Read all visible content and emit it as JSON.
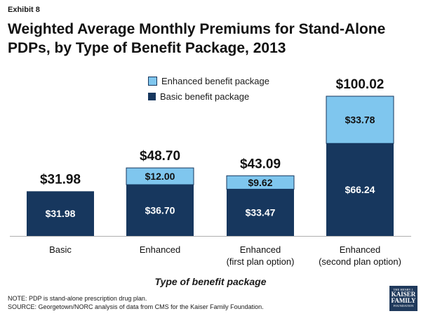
{
  "exhibit": "Exhibit 8",
  "title_lines": [
    "Weighted Average Monthly Premiums for Stand-Alone",
    "PDPs, by Type of Benefit Package, 2013"
  ],
  "chart_data": {
    "type": "bar",
    "stacked": true,
    "categories": [
      [
        "Basic"
      ],
      [
        "Enhanced"
      ],
      [
        "Enhanced",
        "(first plan option)"
      ],
      [
        "Enhanced",
        "(second plan option)"
      ]
    ],
    "series": [
      {
        "name": "Basic benefit package",
        "color": "#17375e",
        "values": [
          31.98,
          36.7,
          33.47,
          66.24
        ],
        "labels": [
          "$31.98",
          "$36.70",
          "$33.47",
          "$66.24"
        ]
      },
      {
        "name": "Enhanced benefit package",
        "color": "#7fc6ee",
        "values": [
          0,
          12.0,
          9.62,
          33.78
        ],
        "labels": [
          "",
          "$12.00",
          "$9.62",
          "$33.78"
        ]
      }
    ],
    "totals": [
      31.98,
      48.7,
      43.09,
      100.02
    ],
    "total_labels": [
      "$31.98",
      "$48.70",
      "$43.09",
      "$100.02"
    ],
    "xlabel": "Type of benefit package",
    "ylabel": "",
    "ylim": [
      0,
      100.02
    ],
    "legend_position": "top-center"
  },
  "notes": {
    "note": "NOTE: PDP is stand-alone prescription drug plan.",
    "source": "SOURCE: Georgetown/NORC analysis of data from CMS for the Kaiser Family Foundation."
  },
  "logo": {
    "line1": "THE HENRY J.",
    "line2a": "KAISER",
    "line2b": "FAMILY",
    "line3": "FOUNDATION"
  }
}
